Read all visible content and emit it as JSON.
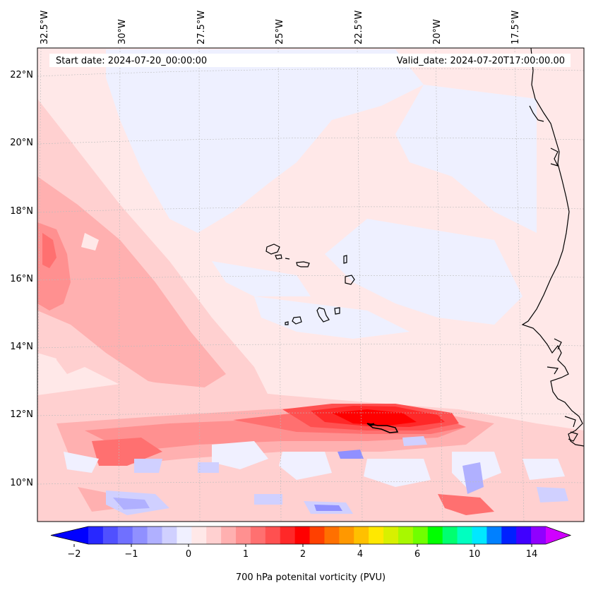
{
  "map": {
    "start_label": "Start date: 2024-07-20_00:00:00",
    "valid_label": "Valid_date: 2024-07-20T17:00:00.00",
    "lon_labels": [
      "32.5°W",
      "30°W",
      "27.5°W",
      "25°W",
      "22.5°W",
      "20°W",
      "17.5°W"
    ],
    "lat_labels": [
      "22°N",
      "20°N",
      "18°N",
      "16°N",
      "14°N",
      "12°N",
      "10°N"
    ],
    "background_color": "#ffe8e8",
    "coastline_color": "#000000",
    "grid_color": "#bbbbbb"
  },
  "colorbar": {
    "label": "700 hPa potenital vorticity (PVU)",
    "tick_labels": [
      "−2",
      "−1",
      "0",
      "1",
      "2",
      "4",
      "6",
      "10",
      "14"
    ],
    "colors": [
      "#0000ff",
      "#2828ff",
      "#5050ff",
      "#7070ff",
      "#9090ff",
      "#b0b0ff",
      "#d0d0ff",
      "#f0f0ff",
      "#ffe8e8",
      "#ffd0d0",
      "#ffb0b0",
      "#ff9090",
      "#ff7070",
      "#ff5050",
      "#ff2828",
      "#ff0000",
      "#ff4000",
      "#ff7000",
      "#ff9800",
      "#ffc000",
      "#ffe800",
      "#d8f000",
      "#a8f800",
      "#70ff00",
      "#00ff00",
      "#00ff70",
      "#00ffc0",
      "#00e8ff",
      "#0080ff",
      "#0020ff",
      "#4000ff",
      "#9000ff",
      "#d000ff"
    ]
  }
}
